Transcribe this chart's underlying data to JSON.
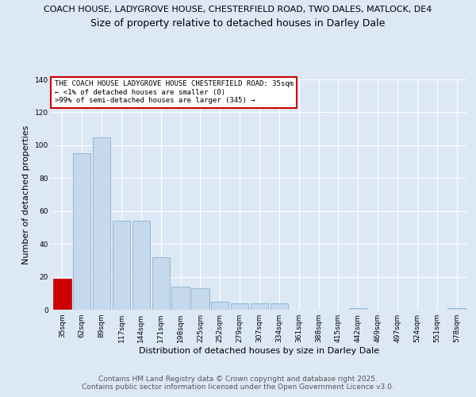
{
  "title": "COACH HOUSE, LADYGROVE HOUSE, CHESTERFIELD ROAD, TWO DALES, MATLOCK, DE4",
  "subtitle": "Size of property relative to detached houses in Darley Dale",
  "xlabel": "Distribution of detached houses by size in Darley Dale",
  "ylabel": "Number of detached properties",
  "categories": [
    "35sqm",
    "62sqm",
    "89sqm",
    "117sqm",
    "144sqm",
    "171sqm",
    "198sqm",
    "225sqm",
    "252sqm",
    "279sqm",
    "307sqm",
    "334sqm",
    "361sqm",
    "388sqm",
    "415sqm",
    "442sqm",
    "469sqm",
    "497sqm",
    "524sqm",
    "551sqm",
    "578sqm"
  ],
  "values": [
    19,
    95,
    105,
    54,
    54,
    32,
    14,
    13,
    5,
    4,
    4,
    4,
    0,
    0,
    0,
    1,
    0,
    0,
    0,
    0,
    1
  ],
  "bar_color": "#c5d8ec",
  "bar_edge_color": "#7aaac8",
  "highlight_bar_color": "#cc0000",
  "highlight_bar_edge_color": "#cc0000",
  "highlight_index": 0,
  "ylim": [
    0,
    140
  ],
  "yticks": [
    0,
    20,
    40,
    60,
    80,
    100,
    120,
    140
  ],
  "annotation_box_text": "THE COACH HOUSE LADYGROVE HOUSE CHESTERFIELD ROAD: 35sqm\n← <1% of detached houses are smaller (0)\n>99% of semi-detached houses are larger (345) →",
  "annotation_box_color": "#cc0000",
  "footer_text": "Contains HM Land Registry data © Crown copyright and database right 2025.\nContains public sector information licensed under the Open Government Licence v3.0.",
  "background_color": "#dde8f5",
  "plot_bg_color": "#dde8f5",
  "grid_color": "#ffffff",
  "title_fontsize": 8,
  "subtitle_fontsize": 9,
  "xlabel_fontsize": 8,
  "ylabel_fontsize": 8,
  "tick_fontsize": 6.5,
  "footer_fontsize": 6.5,
  "annotation_fontsize": 6.5
}
